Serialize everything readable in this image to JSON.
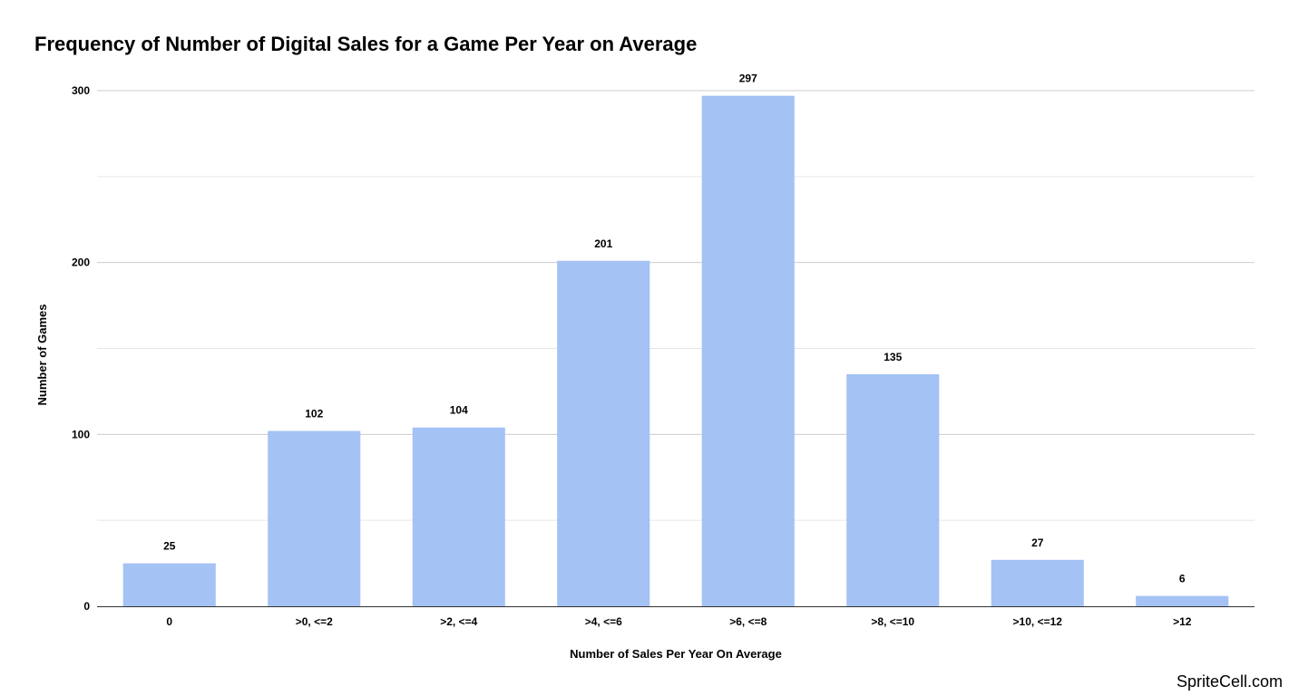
{
  "chart_data": {
    "type": "bar",
    "title": "Frequency of Number of Digital Sales for a Game Per Year on Average",
    "xlabel": "Number of Sales Per Year On Average",
    "ylabel": "Number of Games",
    "categories": [
      "0",
      ">0, <=2",
      ">2, <=4",
      ">4, <=6",
      ">6, <=8",
      ">8, <=10",
      ">10, <=12",
      ">12"
    ],
    "values": [
      25,
      102,
      104,
      201,
      297,
      135,
      27,
      6
    ],
    "ylim": [
      0,
      300
    ],
    "yticks": [
      0,
      100,
      200,
      300
    ],
    "grid": true,
    "legend": "none",
    "data_labels": true,
    "bar_color": "#a4c2f4",
    "gridline_color": "#cccccc",
    "minor_gridline_color": "#e6e6e6",
    "axis_color": "#333333"
  },
  "watermark": "SpriteCell.com"
}
